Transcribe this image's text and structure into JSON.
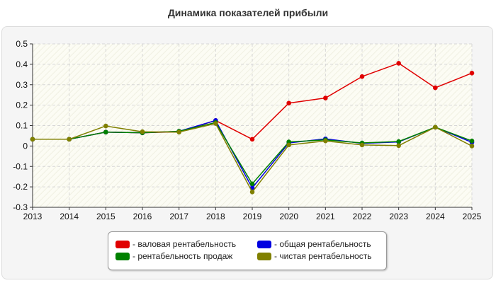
{
  "chart_data": {
    "type": "line",
    "title": "Динамика показателей прибыли",
    "xlabel": "",
    "ylabel": "",
    "x": [
      "2013",
      "2014",
      "2015",
      "2016",
      "2017",
      "2018",
      "2019",
      "2020",
      "2021",
      "2022",
      "2023",
      "2024",
      "2025"
    ],
    "ylim": [
      -0.3,
      0.5
    ],
    "yticks": [
      "0.5",
      "0.4",
      "0.3",
      "0.2",
      "0.1",
      "0",
      "-0.1",
      "-0.2",
      "-0.3"
    ],
    "grid": true,
    "legend_position": "bottom",
    "series": [
      {
        "name": "- валовая рентабельность",
        "color": "#e00000",
        "values": [
          0.033,
          0.033,
          0.068,
          0.065,
          0.07,
          0.125,
          0.033,
          0.21,
          0.235,
          0.34,
          0.405,
          0.285,
          0.357
        ]
      },
      {
        "name": "- общая рентабельность",
        "color": "#0000e0",
        "values": [
          0.033,
          0.033,
          0.068,
          0.065,
          0.072,
          0.125,
          -0.205,
          0.015,
          0.035,
          0.013,
          0.02,
          0.092,
          0.018
        ]
      },
      {
        "name": "- рентабельность продаж",
        "color": "#008000",
        "values": [
          0.033,
          0.033,
          0.068,
          0.065,
          0.072,
          0.115,
          -0.185,
          0.02,
          0.03,
          0.015,
          0.022,
          0.092,
          0.025
        ]
      },
      {
        "name": "- чистая рентабельность",
        "color": "#808000",
        "values": [
          0.033,
          0.033,
          0.098,
          0.07,
          0.068,
          0.11,
          -0.225,
          0.005,
          0.025,
          0.005,
          0.002,
          0.092,
          0.0
        ]
      }
    ]
  },
  "legend": {
    "items": [
      {
        "label": "- валовая рентабельность",
        "color": "#e00000"
      },
      {
        "label": "- общая рентабельность",
        "color": "#0000e0"
      },
      {
        "label": "- рентабельность продаж",
        "color": "#008000"
      },
      {
        "label": "- чистая рентабельность",
        "color": "#808000"
      }
    ]
  }
}
